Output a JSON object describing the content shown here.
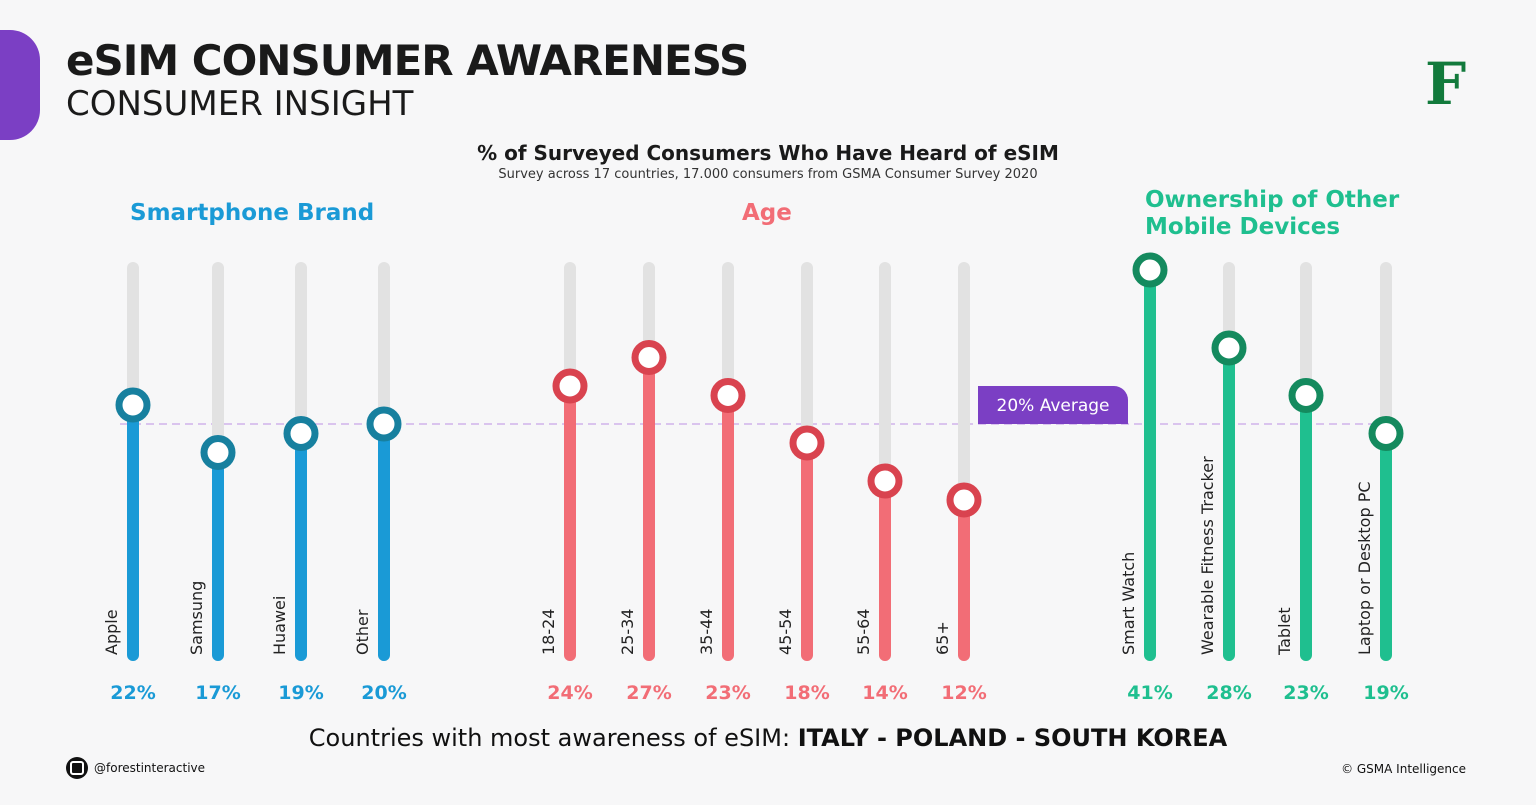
{
  "header": {
    "title": "eSIM CONSUMER AWARENESS",
    "subtitle": "CONSUMER INSIGHT",
    "logo": "F"
  },
  "chart_data": {
    "type": "bar",
    "title": "% of Surveyed Consumers Who Have Heard of eSIM",
    "subtitle": "Survey across 17 countries, 17.000 consumers from GSMA Consumer Survey 2020",
    "average": {
      "value": 20,
      "label": "20% Average",
      "color": "#7b3fc4"
    },
    "groups": [
      {
        "name": "Smartphone Brand",
        "color": "#1a9ad6",
        "ring": "#17809f",
        "categories": [
          "Apple",
          "Samsung",
          "Huawei",
          "Other"
        ],
        "values": [
          22,
          17,
          19,
          20
        ],
        "labels": [
          "22%",
          "17%",
          "19%",
          "20%"
        ]
      },
      {
        "name": "Age",
        "color": "#f26d76",
        "ring": "#d9434f",
        "categories": [
          "18-24",
          "25-34",
          "35-44",
          "45-54",
          "55-64",
          "65+"
        ],
        "values": [
          24,
          27,
          23,
          18,
          14,
          12
        ],
        "labels": [
          "24%",
          "27%",
          "23%",
          "18%",
          "14%",
          "12%"
        ]
      },
      {
        "name": "Ownership of Other Mobile Devices",
        "color": "#1fbf8f",
        "ring": "#148a5e",
        "categories": [
          "Smart Watch",
          "Wearable Fitness Tracker",
          "Tablet",
          "Laptop or Desktop PC"
        ],
        "values": [
          41,
          28,
          23,
          19
        ],
        "labels": [
          "41%",
          "28%",
          "23%",
          "19%"
        ]
      }
    ]
  },
  "footer": {
    "countries_prefix": "Countries with most awareness of eSIM: ",
    "countries": "ITALY - POLAND - SOUTH KOREA",
    "instagram": "@forestinteractive",
    "copyright": "© GSMA Intelligence"
  }
}
